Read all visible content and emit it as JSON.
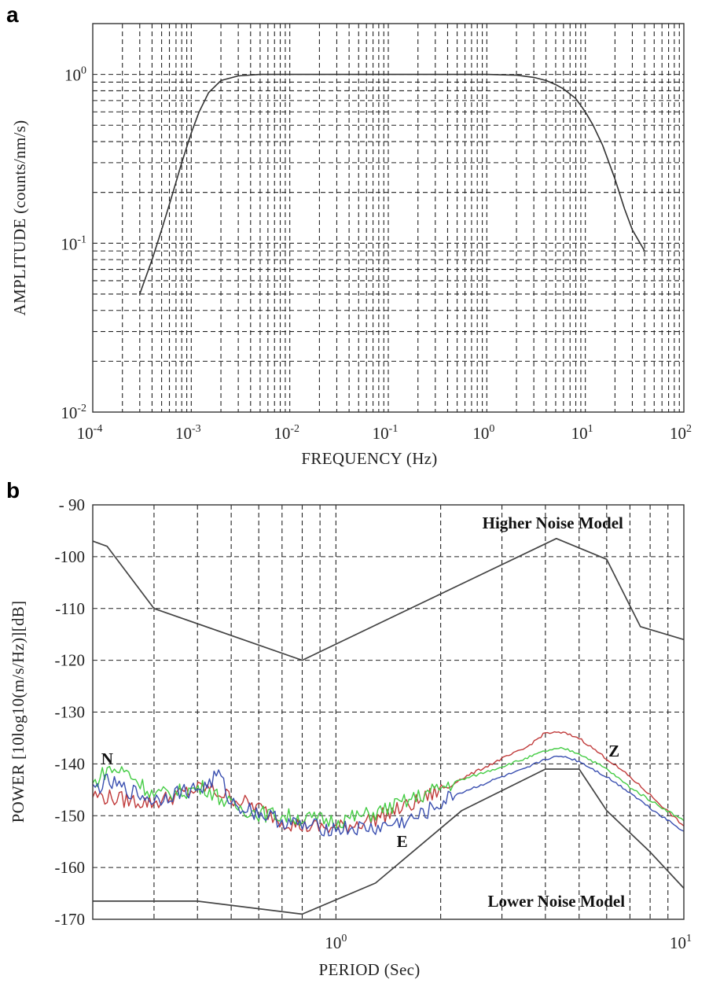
{
  "chart_data": [
    {
      "panel_label": "a",
      "type": "line",
      "xlabel": "FREQUENCY (Hz)",
      "ylabel": "AMPLITUDE (counts/nm/s)",
      "xscale": "log",
      "yscale": "log",
      "xlim": [
        0.0001,
        100
      ],
      "ylim": [
        0.01,
        2
      ],
      "grid": true,
      "x_ticks": [
        {
          "base": "10",
          "exp": "-4",
          "value": 0.0001
        },
        {
          "base": "10",
          "exp": "-3",
          "value": 0.001
        },
        {
          "base": "10",
          "exp": "-2",
          "value": 0.01
        },
        {
          "base": "10",
          "exp": "-1",
          "value": 0.1
        },
        {
          "base": "10",
          "exp": "0",
          "value": 1
        },
        {
          "base": "10",
          "exp": "1",
          "value": 10
        },
        {
          "base": "10",
          "exp": "2",
          "value": 100
        }
      ],
      "y_ticks": [
        {
          "base": "10",
          "exp": "-2",
          "value": 0.01
        },
        {
          "base": "10",
          "exp": "-1",
          "value": 0.1
        },
        {
          "base": "10",
          "exp": "0",
          "value": 1
        }
      ],
      "series": [
        {
          "color": "#333333",
          "x": [
            0.0003,
            0.0004,
            0.0005,
            0.0006,
            0.0007,
            0.0008,
            0.001,
            0.0012,
            0.0015,
            0.002,
            0.003,
            0.005,
            0.01,
            0.1,
            1,
            2,
            3,
            4,
            5,
            6,
            8,
            10,
            12,
            15,
            20,
            25,
            30,
            40
          ],
          "y": [
            0.05,
            0.08,
            0.12,
            0.17,
            0.23,
            0.3,
            0.45,
            0.6,
            0.78,
            0.92,
            0.98,
            1.0,
            1.0,
            1.0,
            1.0,
            0.99,
            0.96,
            0.92,
            0.87,
            0.82,
            0.72,
            0.6,
            0.5,
            0.38,
            0.24,
            0.16,
            0.12,
            0.09
          ]
        }
      ]
    },
    {
      "panel_label": "b",
      "type": "line",
      "xlabel": "PERIOD (Sec)",
      "ylabel": "POWER [10log10(m/s/Hz)][dB]",
      "xscale": "log",
      "xlim": [
        0.2,
        10
      ],
      "ylim": [
        -170,
        -90
      ],
      "grid": true,
      "x_ticks": [
        {
          "base": "10",
          "exp": "0",
          "value": 1
        },
        {
          "base": "10",
          "exp": "1",
          "value": 10
        }
      ],
      "y_ticks": [
        {
          "label": "- 90",
          "value": -90
        },
        {
          "label": "-100",
          "value": -100
        },
        {
          "label": "-110",
          "value": -110
        },
        {
          "label": "-120",
          "value": -120
        },
        {
          "label": "-130",
          "value": -130
        },
        {
          "label": "-140",
          "value": -140
        },
        {
          "label": "-150",
          "value": -150
        },
        {
          "label": "-160",
          "value": -160
        },
        {
          "label": "-170",
          "value": -170
        }
      ],
      "annotations": [
        {
          "text": "Higher Noise Model",
          "x": 4.2,
          "y": -93.5
        },
        {
          "text": "Lower Noise Model",
          "x": 4.3,
          "y": -166.5
        },
        {
          "text": "N",
          "x": 0.22,
          "y": -139
        },
        {
          "text": "E",
          "x": 1.55,
          "y": -155
        },
        {
          "text": "Z",
          "x": 6.3,
          "y": -137.5
        }
      ],
      "series": [
        {
          "name": "Higher Noise Model",
          "color": "#444444",
          "x": [
            0.2,
            0.22,
            0.3,
            0.8,
            4.3,
            6,
            7.5,
            10
          ],
          "y": [
            -97,
            -98,
            -110,
            -120,
            -96.5,
            -100.5,
            -113.5,
            -116
          ]
        },
        {
          "name": "Lower Noise Model",
          "color": "#444444",
          "x": [
            0.2,
            0.4,
            0.8,
            1.3,
            2.3,
            4,
            5,
            6,
            8,
            10
          ],
          "y": [
            -166.5,
            -166.5,
            -169,
            -163,
            -149,
            -141,
            -141,
            -149,
            -157,
            -164
          ]
        },
        {
          "name": "Z",
          "color": "#c03a3a",
          "x": [
            0.2,
            0.25,
            0.3,
            0.35,
            0.42,
            0.5,
            0.6,
            0.7,
            0.8,
            1.0,
            1.3,
            1.7,
            2.2,
            3.0,
            3.5,
            4.0,
            4.5,
            5.0,
            6.0,
            7.0,
            8.0,
            10.0
          ],
          "y": [
            -146,
            -147,
            -147.5,
            -146,
            -144.5,
            -146.5,
            -148.5,
            -151,
            -152,
            -152.5,
            -150.5,
            -147.5,
            -143.5,
            -139,
            -137,
            -134,
            -134,
            -135,
            -139,
            -142.5,
            -146,
            -152
          ]
        },
        {
          "name": "N",
          "color": "#44cc44",
          "x": [
            0.2,
            0.22,
            0.25,
            0.3,
            0.35,
            0.42,
            0.5,
            0.6,
            0.7,
            0.8,
            1.0,
            1.3,
            1.7,
            2.2,
            3.0,
            3.5,
            4.0,
            4.5,
            5.0,
            6.0,
            7.0,
            8.0,
            10.0
          ],
          "y": [
            -144,
            -141,
            -141.5,
            -146,
            -145.5,
            -144.5,
            -148,
            -149.5,
            -150,
            -150.5,
            -151,
            -149.5,
            -146.5,
            -143.5,
            -140.5,
            -139,
            -137.5,
            -137,
            -138,
            -141,
            -144.5,
            -147,
            -151
          ]
        },
        {
          "name": "E",
          "color": "#3a4fb0",
          "x": [
            0.2,
            0.22,
            0.25,
            0.3,
            0.35,
            0.42,
            0.46,
            0.5,
            0.6,
            0.7,
            0.8,
            1.0,
            1.3,
            1.7,
            2.2,
            3.0,
            3.5,
            4.0,
            4.5,
            5.0,
            6.0,
            7.0,
            8.0,
            10.0
          ],
          "y": [
            -145,
            -143.5,
            -145,
            -147,
            -145.5,
            -144.5,
            -142,
            -147.5,
            -149.5,
            -151,
            -152,
            -152.5,
            -152.5,
            -150.5,
            -146,
            -142.5,
            -141,
            -139,
            -138.5,
            -139.5,
            -142.5,
            -145.5,
            -148.5,
            -153
          ]
        }
      ]
    }
  ]
}
